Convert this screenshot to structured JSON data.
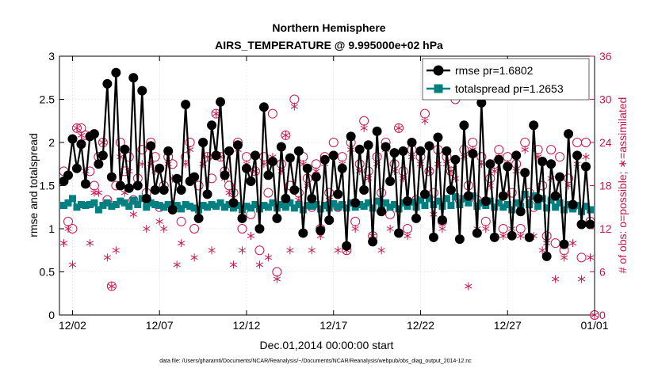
{
  "chart_data": {
    "type": "line",
    "title": "Northern Hemisphere",
    "subtitle": "AIRS_TEMPERATURE @ 9.995000e+02 hPa",
    "xlabel": "Dec.01,2014 00:00:00 start",
    "ylabel": "rmse and totalspread",
    "y2label": "# of obs: o=possible; ∗=assimilated",
    "footnote": "data file: /Users/gharamti/Documents/NCAR/Reanalysis/~/Documents/NCAR/Reanalysis/webpub/obs_diag_output_2014-12.nc",
    "xlim": [
      0.75,
      31.5
    ],
    "ylim": [
      0,
      3
    ],
    "y2lim": [
      0,
      36
    ],
    "xticks": [
      1.5,
      6.5,
      11.5,
      16.5,
      21.5,
      26.5,
      31.5
    ],
    "xticklabels": [
      "12/02",
      "12/07",
      "12/12",
      "12/17",
      "12/22",
      "12/27",
      "01/01"
    ],
    "yticks": [
      0,
      0.5,
      1,
      1.5,
      2,
      2.5,
      3
    ],
    "yticklabels": [
      "0",
      "0.5",
      "1",
      "1.5",
      "2",
      "2.5",
      "3"
    ],
    "y2ticks": [
      0,
      6,
      12,
      18,
      24,
      30,
      36
    ],
    "y2ticklabels": [
      "0",
      "6",
      "12",
      "18",
      "24",
      "30",
      "36"
    ],
    "legend_position": "top-right",
    "grid": true,
    "series": [
      {
        "name": "rmse pr=1.6802",
        "color": "#000000",
        "marker": "circle",
        "x": [
          1,
          1.25,
          1.5,
          1.75,
          2,
          2.25,
          2.5,
          2.75,
          3,
          3.25,
          3.5,
          3.75,
          4,
          4.25,
          4.5,
          4.75,
          5,
          5.25,
          5.5,
          5.75,
          6,
          6.25,
          6.5,
          6.75,
          7,
          7.25,
          7.5,
          7.75,
          8,
          8.25,
          8.5,
          8.75,
          9,
          9.25,
          9.5,
          9.75,
          10,
          10.25,
          10.5,
          10.75,
          11,
          11.25,
          11.5,
          11.75,
          12,
          12.25,
          12.5,
          12.75,
          13,
          13.25,
          13.5,
          13.75,
          14,
          14.25,
          14.5,
          14.75,
          15,
          15.25,
          15.5,
          15.75,
          16,
          16.25,
          16.5,
          16.75,
          17,
          17.25,
          17.5,
          17.75,
          18,
          18.25,
          18.5,
          18.75,
          19,
          19.25,
          19.5,
          19.75,
          20,
          20.25,
          20.5,
          20.75,
          21,
          21.25,
          21.5,
          21.75,
          22,
          22.25,
          22.5,
          22.75,
          23,
          23.25,
          23.5,
          23.75,
          24,
          24.25,
          24.5,
          24.75,
          25,
          25.25,
          25.5,
          25.75,
          26,
          26.25,
          26.5,
          26.75,
          27,
          27.25,
          27.5,
          27.75,
          28,
          28.25,
          28.5,
          28.75,
          29,
          29.25,
          29.5,
          29.75,
          30,
          30.25,
          30.5,
          30.75,
          31,
          31.25
        ],
        "values": [
          1.55,
          1.62,
          2.04,
          1.7,
          1.98,
          1.52,
          2.07,
          2.1,
          1.75,
          1.85,
          2.68,
          1.6,
          2.81,
          1.5,
          1.92,
          1.47,
          2.75,
          1.5,
          2.6,
          1.35,
          1.96,
          1.45,
          1.7,
          1.45,
          1.9,
          1.22,
          1.58,
          1.45,
          2.44,
          1.55,
          1.6,
          1.12,
          2.0,
          1.4,
          2.2,
          1.85,
          2.47,
          1.62,
          1.9,
          1.3,
          1.97,
          1.12,
          1.7,
          1.55,
          1.85,
          1.0,
          2.41,
          1.62,
          1.78,
          1.12,
          1.95,
          1.35,
          1.82,
          1.45,
          1.9,
          0.95,
          1.7,
          1.35,
          1.6,
          0.98,
          1.8,
          1.1,
          1.85,
          1.4,
          1.7,
          0.8,
          2.07,
          1.3,
          1.92,
          1.45,
          1.97,
          0.85,
          2.13,
          1.2,
          1.95,
          1.55,
          1.88,
          0.95,
          1.9,
          1.32,
          2.0,
          1.12,
          1.9,
          1.4,
          1.96,
          0.9,
          2.06,
          1.1,
          1.9,
          1.45,
          1.8,
          0.88,
          2.2,
          1.38,
          1.87,
          0.95,
          2.46,
          1.32,
          1.75,
          0.9,
          1.8,
          1.38,
          1.72,
          0.92,
          1.85,
          1.2,
          1.65,
          0.9,
          2.2,
          1.35,
          1.78,
          0.68,
          1.75,
          1.38,
          1.6,
          0.82,
          2.1,
          1.28,
          1.85,
          1.05,
          1.72,
          1.05
        ]
      },
      {
        "name": "totalspread pr=1.2653",
        "color": "#008080",
        "marker": "square",
        "x": [
          1,
          1.25,
          1.5,
          1.75,
          2,
          2.25,
          2.5,
          2.75,
          3,
          3.25,
          3.5,
          3.75,
          4,
          4.25,
          4.5,
          4.75,
          5,
          5.25,
          5.5,
          5.75,
          6,
          6.25,
          6.5,
          6.75,
          7,
          7.25,
          7.5,
          7.75,
          8,
          8.25,
          8.5,
          8.75,
          9,
          9.25,
          9.5,
          9.75,
          10,
          10.25,
          10.5,
          10.75,
          11,
          11.25,
          11.5,
          11.75,
          12,
          12.25,
          12.5,
          12.75,
          13,
          13.25,
          13.5,
          13.75,
          14,
          14.25,
          14.5,
          14.75,
          15,
          15.25,
          15.5,
          15.75,
          16,
          16.25,
          16.5,
          16.75,
          17,
          17.25,
          17.5,
          17.75,
          18,
          18.25,
          18.5,
          18.75,
          19,
          19.25,
          19.5,
          19.75,
          20,
          20.25,
          20.5,
          20.75,
          21,
          21.25,
          21.5,
          21.75,
          22,
          22.25,
          22.5,
          22.75,
          23,
          23.25,
          23.5,
          23.75,
          24,
          24.25,
          24.5,
          24.75,
          25,
          25.25,
          25.5,
          25.75,
          26,
          26.25,
          26.5,
          26.75,
          27,
          27.25,
          27.5,
          27.75,
          28,
          28.25,
          28.5,
          28.75,
          29,
          29.25,
          29.5,
          29.75,
          30,
          30.25,
          30.5,
          30.75,
          31,
          31.25
        ],
        "values": [
          1.27,
          1.3,
          1.35,
          1.25,
          1.28,
          1.27,
          1.28,
          1.3,
          1.22,
          1.27,
          1.3,
          1.26,
          1.28,
          1.32,
          1.3,
          1.26,
          1.33,
          1.28,
          1.35,
          1.25,
          1.3,
          1.28,
          1.27,
          1.25,
          1.28,
          1.25,
          1.27,
          1.23,
          1.28,
          1.26,
          1.24,
          1.22,
          1.27,
          1.25,
          1.28,
          1.26,
          1.3,
          1.25,
          1.28,
          1.24,
          1.27,
          1.22,
          1.26,
          1.24,
          1.28,
          1.23,
          1.27,
          1.25,
          1.3,
          1.24,
          1.28,
          1.25,
          1.3,
          1.24,
          1.28,
          1.22,
          1.27,
          1.26,
          1.28,
          1.23,
          1.27,
          1.24,
          1.29,
          1.25,
          1.28,
          1.24,
          1.3,
          1.25,
          1.28,
          1.26,
          1.3,
          1.24,
          1.32,
          1.26,
          1.3,
          1.25,
          1.28,
          1.23,
          1.3,
          1.26,
          1.31,
          1.25,
          1.33,
          1.27,
          1.35,
          1.28,
          1.32,
          1.26,
          1.35,
          1.27,
          1.37,
          1.28,
          1.35,
          1.3,
          1.38,
          1.26,
          1.3,
          1.27,
          1.32,
          1.25,
          1.3,
          1.25,
          1.28,
          1.22,
          1.3,
          1.26,
          1.4,
          1.28,
          1.38,
          1.26,
          1.35,
          1.24,
          1.33,
          1.25,
          1.3,
          1.22,
          1.28,
          1.23,
          1.27,
          1.2,
          1.26,
          1.22
        ]
      }
    ],
    "obs_series": [
      {
        "name": "possible",
        "color": "#c8164c",
        "marker": "open-circle",
        "axis": "right",
        "x": [
          1,
          1.25,
          1.5,
          1.75,
          2,
          2.25,
          2.5,
          2.75,
          3,
          3.25,
          3.5,
          3.75,
          4,
          4.25,
          4.5,
          4.75,
          5,
          5.25,
          5.5,
          5.75,
          6,
          6.25,
          6.5,
          6.75,
          7,
          7.25,
          7.5,
          7.75,
          8,
          8.25,
          8.5,
          8.75,
          9,
          9.25,
          9.5,
          9.75,
          10,
          10.25,
          10.5,
          10.75,
          11,
          11.25,
          11.5,
          11.75,
          12,
          12.25,
          12.5,
          12.75,
          13,
          13.25,
          13.5,
          13.75,
          14,
          14.25,
          14.5,
          14.75,
          15,
          15.25,
          15.5,
          15.75,
          16,
          16.25,
          16.5,
          16.75,
          17,
          17.25,
          17.5,
          17.75,
          18,
          18.25,
          18.5,
          18.75,
          19,
          19.25,
          19.5,
          19.75,
          20,
          20.25,
          20.5,
          20.75,
          21,
          21.25,
          21.5,
          21.75,
          22,
          22.25,
          22.5,
          22.75,
          23,
          23.25,
          23.5,
          23.75,
          24,
          24.25,
          24.5,
          24.75,
          25,
          25.25,
          25.5,
          25.75,
          26,
          26.25,
          26.5,
          26.75,
          27,
          27.25,
          27.5,
          27.75,
          28,
          28.25,
          28.5,
          28.75,
          29,
          29.25,
          29.5,
          29.75,
          30,
          30.25,
          30.5,
          30.75,
          31,
          31.25,
          31.5
        ],
        "values": [
          20,
          13,
          12,
          26,
          26,
          25,
          20,
          18,
          22,
          24,
          16,
          4,
          18,
          24,
          20,
          22,
          16,
          19,
          23,
          17,
          24,
          22,
          15,
          18,
          22,
          21,
          15,
          13,
          22,
          24,
          12,
          18,
          24,
          22,
          19,
          28,
          22,
          20,
          18,
          17,
          24,
          12,
          22,
          14,
          20,
          9,
          22,
          17,
          28,
          6,
          21,
          25,
          18,
          30,
          17,
          22,
          19,
          15,
          21,
          12,
          22,
          17,
          24,
          15,
          22,
          9,
          24,
          13,
          21,
          27,
          20,
          11,
          22,
          17,
          24,
          14,
          21,
          26,
          20,
          12,
          23,
          16,
          22,
          28,
          20,
          17,
          23,
          13,
          22,
          20,
          30,
          16,
          23,
          18,
          24,
          16,
          22,
          13,
          19,
          21,
          23,
          12,
          22,
          17,
          21,
          12,
          24,
          17,
          15,
          23,
          18,
          11,
          23,
          10,
          22,
          9,
          19,
          15,
          24,
          8,
          24,
          13,
          0
        ]
      },
      {
        "name": "assimilated",
        "color": "#c8164c",
        "marker": "asterisk",
        "axis": "right",
        "x": [
          1,
          1.25,
          1.5,
          1.75,
          2,
          2.25,
          2.5,
          2.75,
          3,
          3.25,
          3.5,
          3.75,
          4,
          4.25,
          4.5,
          4.75,
          5,
          5.25,
          5.5,
          5.75,
          6,
          6.25,
          6.5,
          6.75,
          7,
          7.25,
          7.5,
          7.75,
          8,
          8.25,
          8.5,
          8.75,
          9,
          9.25,
          9.5,
          9.75,
          10,
          10.25,
          10.5,
          10.75,
          11,
          11.25,
          11.5,
          11.75,
          12,
          12.25,
          12.5,
          12.75,
          13,
          13.25,
          13.5,
          13.75,
          14,
          14.25,
          14.5,
          14.75,
          15,
          15.25,
          15.5,
          15.75,
          16,
          16.25,
          16.5,
          16.75,
          17,
          17.25,
          17.5,
          17.75,
          18,
          18.25,
          18.5,
          18.75,
          19,
          19.25,
          19.5,
          19.75,
          20,
          20.25,
          20.5,
          20.75,
          21,
          21.25,
          21.5,
          21.75,
          22,
          22.25,
          22.5,
          22.75,
          23,
          23.25,
          23.5,
          23.75,
          24,
          24.25,
          24.5,
          24.75,
          25,
          25.25,
          25.5,
          25.75,
          26,
          26.25,
          26.5,
          26.75,
          27,
          27.25,
          27.5,
          27.75,
          28,
          28.25,
          28.5,
          28.75,
          29,
          29.25,
          29.5,
          29.75,
          30,
          30.25,
          30.5,
          30.75,
          31,
          31.25,
          31.5
        ],
        "values": [
          10,
          12,
          7,
          26,
          25,
          20,
          10,
          17,
          17,
          24,
          8,
          4,
          9,
          22,
          17,
          20,
          14,
          18,
          21,
          12,
          21,
          20,
          13,
          12,
          21,
          19,
          7,
          10,
          21,
          23,
          8,
          14,
          21,
          22,
          9,
          28,
          22,
          19,
          17,
          7,
          23,
          9,
          21,
          11,
          20,
          7,
          21,
          8,
          22,
          5,
          20,
          25,
          9,
          29,
          16,
          21,
          18,
          9,
          20,
          11,
          21,
          16,
          22,
          9,
          21,
          9,
          23,
          12,
          20,
          26,
          19,
          11,
          21,
          9,
          23,
          12,
          20,
          26,
          19,
          11,
          22,
          15,
          21,
          27,
          20,
          14,
          21,
          12,
          21,
          20,
          19,
          16,
          22,
          4,
          23,
          12,
          21,
          12,
          18,
          20,
          22,
          11,
          21,
          12,
          20,
          11,
          23,
          16,
          11,
          22,
          9,
          10,
          19,
          5,
          19,
          8,
          18,
          10,
          21,
          5,
          22,
          8,
          0
        ]
      }
    ]
  }
}
